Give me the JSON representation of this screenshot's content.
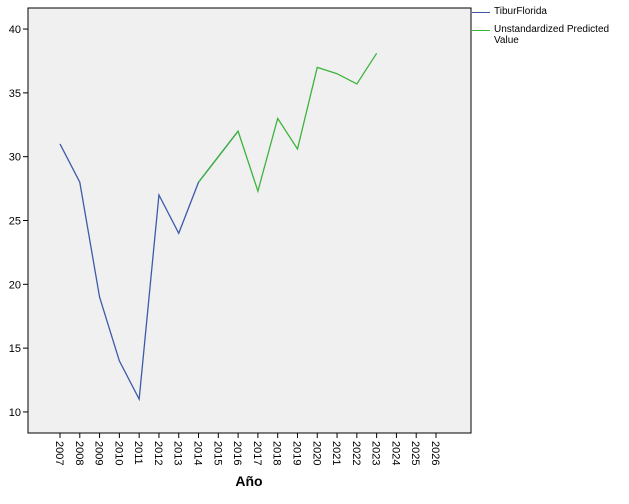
{
  "chart_data": {
    "type": "line",
    "x_label": "Año",
    "categories": [
      "2007",
      "2008",
      "2009",
      "2010",
      "2011",
      "2012",
      "2013",
      "2014",
      "2015",
      "2016",
      "2017",
      "2018",
      "2019",
      "2020",
      "2021",
      "2022",
      "2023",
      "2024",
      "2025",
      "2026"
    ],
    "series": [
      {
        "name": "TiburFlorida",
        "color": "#3c5ba8",
        "values": [
          31,
          28,
          19,
          14,
          11,
          27,
          24,
          28,
          30,
          32,
          null,
          null,
          null,
          null,
          null,
          null,
          null,
          null,
          null,
          null
        ]
      },
      {
        "name": "Unstandardized Predicted Value",
        "color": "#3cb43c",
        "values": [
          null,
          null,
          null,
          null,
          null,
          null,
          null,
          28,
          30,
          32,
          27.3,
          33,
          30.6,
          37,
          36.5,
          35.7,
          38.1,
          null,
          null,
          null
        ]
      }
    ],
    "ylim": [
      8.35,
      41.65
    ],
    "yticks": [
      10,
      15,
      20,
      25,
      30,
      35,
      40
    ],
    "grid": false
  }
}
